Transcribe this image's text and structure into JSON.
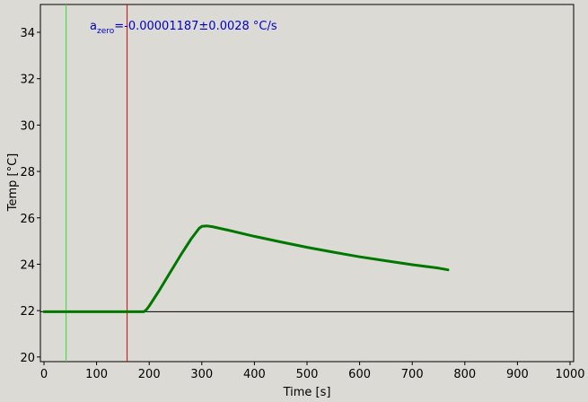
{
  "chart_data": {
    "type": "line",
    "xlabel": "Time [s]",
    "ylabel": "Temp [°C]",
    "xlim": [
      0,
      1000
    ],
    "ylim": [
      19.8,
      35.2
    ],
    "x_ticks": [
      0,
      100,
      200,
      300,
      400,
      500,
      600,
      700,
      800,
      900,
      1000
    ],
    "y_ticks": [
      20,
      22,
      24,
      26,
      28,
      30,
      32,
      34
    ],
    "grid": false,
    "legend": "none",
    "annotation": {
      "symbol": "a",
      "subscript": "zero",
      "text": "=-0.00001187±0.0028 °C/s",
      "color": "#0000cc"
    },
    "series": [
      {
        "color": "#007800",
        "x": [
          0,
          50,
          100,
          150,
          190,
          195,
          200,
          220,
          240,
          260,
          280,
          295,
          300,
          310,
          320,
          350,
          400,
          450,
          500,
          550,
          600,
          650,
          700,
          750,
          768
        ],
        "y": [
          21.95,
          21.95,
          21.95,
          21.95,
          21.95,
          22.05,
          22.2,
          22.9,
          23.65,
          24.4,
          25.1,
          25.55,
          25.63,
          25.65,
          25.62,
          25.47,
          25.2,
          24.96,
          24.73,
          24.52,
          24.32,
          24.15,
          23.98,
          23.83,
          23.76
        ]
      }
    ],
    "hlines": [
      {
        "y": 21.95,
        "color": "#000000"
      }
    ],
    "vlines": [
      {
        "x": 42,
        "color": "#33dd33"
      },
      {
        "x": 158,
        "color": "#dd0000"
      }
    ],
    "colors": {
      "background": "#dcdad5",
      "frame": "#000000"
    }
  }
}
